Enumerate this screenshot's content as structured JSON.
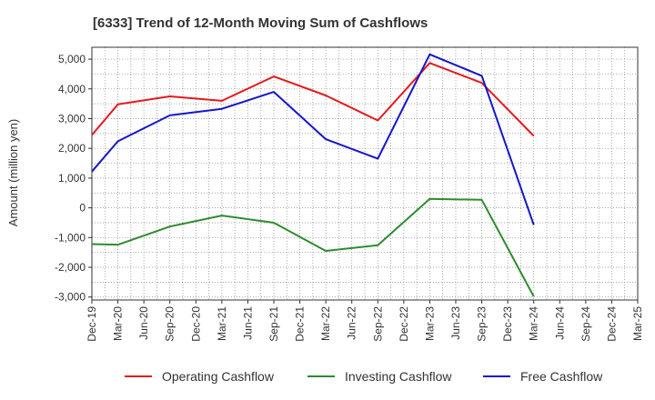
{
  "chart_data": {
    "type": "line",
    "title": "[6333]  Trend of 12-Month Moving Sum of Cashflows",
    "xlabel": "",
    "ylabel": "Amount (million yen)",
    "ylim": [
      -3100,
      5400
    ],
    "y_ticks": [
      5000,
      4000,
      3000,
      2000,
      1000,
      0,
      -1000,
      -2000,
      -3000
    ],
    "y_tick_labels": [
      "5,000",
      "4,000",
      "3,000",
      "2,000",
      "1,000",
      "0",
      "-1,000",
      "-2,000",
      "-3,000"
    ],
    "categories": [
      "Dec-19",
      "Mar-20",
      "Jun-20",
      "Sep-20",
      "Dec-20",
      "Mar-21",
      "Jun-21",
      "Sep-21",
      "Dec-21",
      "Mar-22",
      "Jun-22",
      "Sep-22",
      "Dec-22",
      "Mar-23",
      "Jun-23",
      "Sep-23",
      "Dec-23",
      "Mar-24",
      "Jun-24",
      "Sep-24",
      "Dec-24",
      "Mar-25"
    ],
    "grid": true,
    "legend_position": "bottom",
    "series": [
      {
        "name": "Operating Cashflow",
        "color": "#e41a1c",
        "values": [
          2450,
          3480,
          null,
          3750,
          null,
          3600,
          null,
          4420,
          null,
          3780,
          null,
          2940,
          null,
          4870,
          null,
          4200,
          null,
          2420,
          null,
          null,
          null,
          null
        ]
      },
      {
        "name": "Investing Cashflow",
        "color": "#2e8b2e",
        "values": [
          -1220,
          -1240,
          null,
          -630,
          null,
          -260,
          null,
          -500,
          null,
          -1450,
          null,
          -1260,
          null,
          300,
          null,
          270,
          null,
          -2980,
          null,
          null,
          null,
          null
        ]
      },
      {
        "name": "Free Cashflow",
        "color": "#1515cc",
        "values": [
          1220,
          2240,
          null,
          3110,
          null,
          3330,
          null,
          3900,
          null,
          2310,
          null,
          1650,
          null,
          5160,
          null,
          4440,
          null,
          -570,
          null,
          null,
          null,
          null
        ]
      }
    ]
  }
}
